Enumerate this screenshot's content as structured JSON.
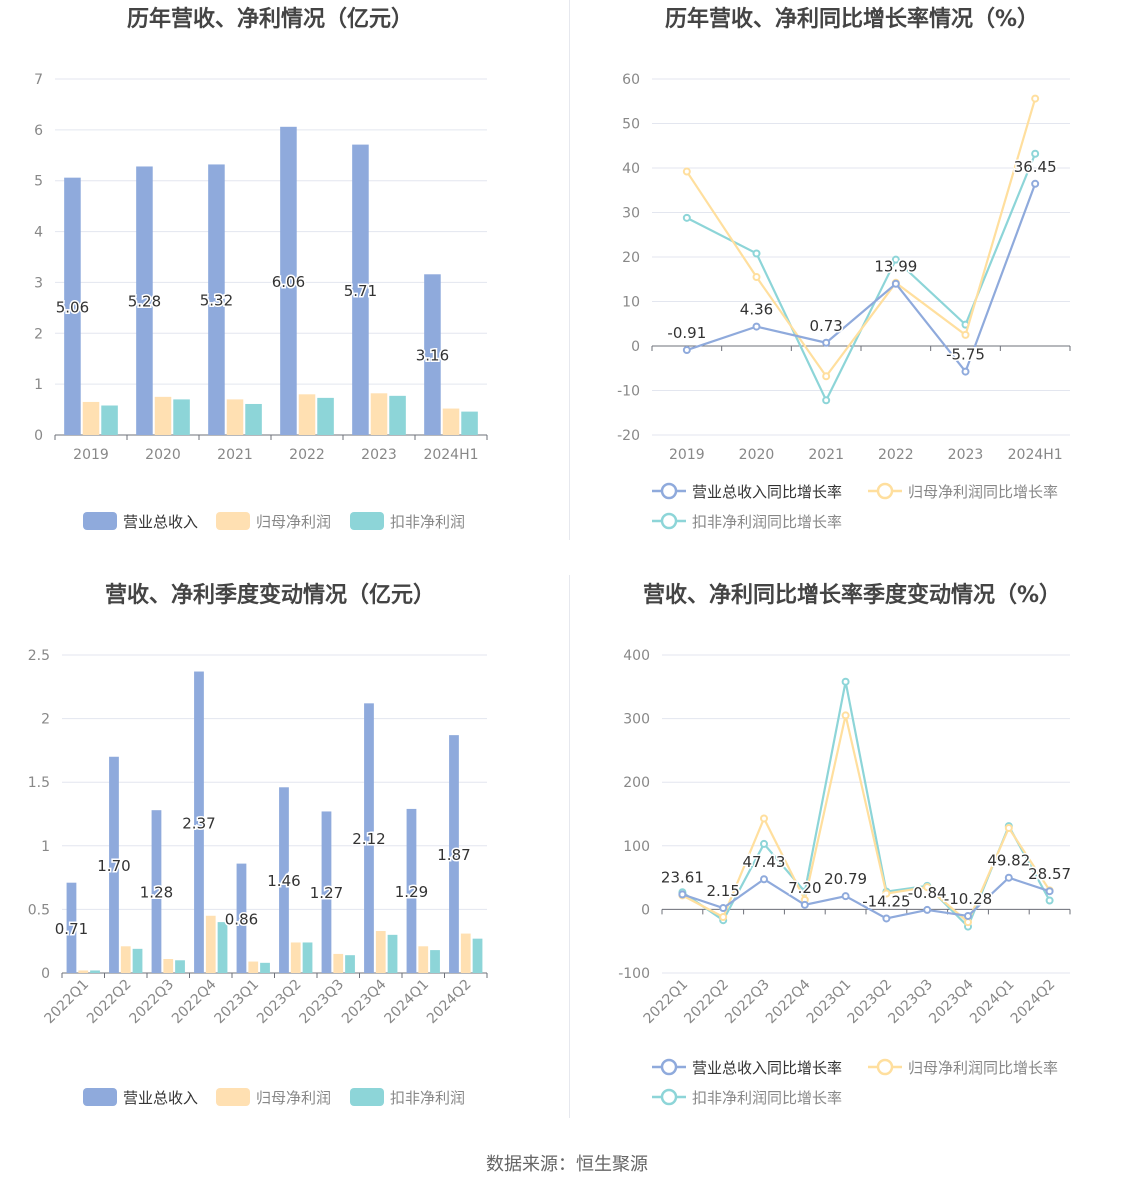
{
  "source": "数据来源：恒生聚源",
  "colors": {
    "revenue": "#8faadc",
    "net_profit": "#ffe0b2",
    "deducted_profit": "#8dd5d8",
    "revenue_line": "#8faadc",
    "net_profit_line": "#ffdf9e",
    "deducted_profit_line": "#8dd5d8",
    "grid": "#e3e6ef",
    "axis_text": "#888888",
    "title": "#444444"
  },
  "chart_data": [
    {
      "type": "bar",
      "title": "历年营收、净利情况（亿元）",
      "categories": [
        "2019",
        "2020",
        "2021",
        "2022",
        "2023",
        "2024H1"
      ],
      "ylim": [
        0,
        7
      ],
      "yticks": [
        "0",
        "1",
        "2",
        "3",
        "4",
        "5",
        "6",
        "7"
      ],
      "series": [
        {
          "name": "营业总收入",
          "values": [
            5.06,
            5.28,
            5.32,
            6.06,
            5.71,
            3.16
          ]
        },
        {
          "name": "归母净利润",
          "values": [
            0.65,
            0.75,
            0.7,
            0.8,
            0.82,
            0.52
          ]
        },
        {
          "name": "扣非净利润",
          "values": [
            0.58,
            0.7,
            0.61,
            0.73,
            0.77,
            0.46
          ]
        }
      ],
      "data_labels": [
        "5.06",
        "5.28",
        "5.32",
        "6.06",
        "5.71",
        "3.16"
      ],
      "legend": "bottom",
      "grid": true
    },
    {
      "type": "line",
      "title": "历年营收、净利同比增长率情况（%）",
      "categories": [
        "2019",
        "2020",
        "2021",
        "2022",
        "2023",
        "2024H1"
      ],
      "ylim": [
        -20,
        60
      ],
      "yticks": [
        "-20",
        "-10",
        "0",
        "10",
        "20",
        "30",
        "40",
        "50",
        "60"
      ],
      "series": [
        {
          "name": "营业总收入同比增长率",
          "values": [
            -0.91,
            4.36,
            0.73,
            13.99,
            -5.75,
            36.45
          ]
        },
        {
          "name": "归母净利润同比增长率",
          "values": [
            39.2,
            15.5,
            -6.8,
            14.2,
            2.5,
            55.6
          ]
        },
        {
          "name": "扣非净利润同比增长率",
          "values": [
            28.8,
            20.8,
            -12.2,
            19.4,
            4.8,
            43.2
          ]
        }
      ],
      "data_labels": [
        "-0.91",
        "4.36",
        "0.73",
        "13.99",
        "-5.75",
        "36.45"
      ],
      "legend": "bottom",
      "grid": true
    },
    {
      "type": "bar",
      "title": "营收、净利季度变动情况（亿元）",
      "categories": [
        "2022Q1",
        "2022Q2",
        "2022Q3",
        "2022Q4",
        "2023Q1",
        "2023Q2",
        "2023Q3",
        "2023Q4",
        "2024Q1",
        "2024Q2"
      ],
      "ylim": [
        0,
        2.5
      ],
      "yticks": [
        "0",
        "0.5",
        "1",
        "1.5",
        "2",
        "2.5"
      ],
      "series": [
        {
          "name": "营业总收入",
          "values": [
            0.71,
            1.7,
            1.28,
            2.37,
            0.86,
            1.46,
            1.27,
            2.12,
            1.29,
            1.87
          ]
        },
        {
          "name": "归母净利润",
          "values": [
            0.02,
            0.21,
            0.11,
            0.45,
            0.09,
            0.24,
            0.15,
            0.33,
            0.21,
            0.31
          ]
        },
        {
          "name": "扣非净利润",
          "values": [
            0.02,
            0.19,
            0.1,
            0.4,
            0.08,
            0.24,
            0.14,
            0.3,
            0.18,
            0.27
          ]
        }
      ],
      "data_labels": [
        "0.71",
        "1.70",
        "1.28",
        "2.37",
        "0.86",
        "1.46",
        "1.27",
        "2.12",
        "1.29",
        "1.87"
      ],
      "legend": "bottom",
      "grid": true
    },
    {
      "type": "line",
      "title": "营收、净利同比增长率季度变动情况（%）",
      "categories": [
        "2022Q1",
        "2022Q2",
        "2022Q3",
        "2022Q4",
        "2023Q1",
        "2023Q2",
        "2023Q3",
        "2023Q4",
        "2024Q1",
        "2024Q2"
      ],
      "ylim": [
        -100,
        400
      ],
      "yticks": [
        "-100",
        "0",
        "100",
        "200",
        "300",
        "400"
      ],
      "series": [
        {
          "name": "营业总收入同比增长率",
          "values": [
            23.61,
            2.15,
            47.43,
            7.2,
            20.79,
            -14.25,
            -0.84,
            -10.28,
            49.82,
            28.57
          ]
        },
        {
          "name": "归母净利润同比增长率",
          "values": [
            22,
            -12,
            143,
            15,
            305,
            25,
            35,
            -20,
            128,
            30
          ]
        },
        {
          "name": "扣非净利润同比增长率",
          "values": [
            27,
            -17,
            103,
            28,
            358,
            28,
            37,
            -27,
            131,
            14
          ]
        }
      ],
      "data_labels": [
        "23.61",
        "2.15",
        "47.43",
        "7.20",
        "20.79",
        "-14.25",
        "-0.84",
        "-10.28",
        "49.82",
        "28.57"
      ],
      "legend": "bottom",
      "grid": true
    }
  ]
}
